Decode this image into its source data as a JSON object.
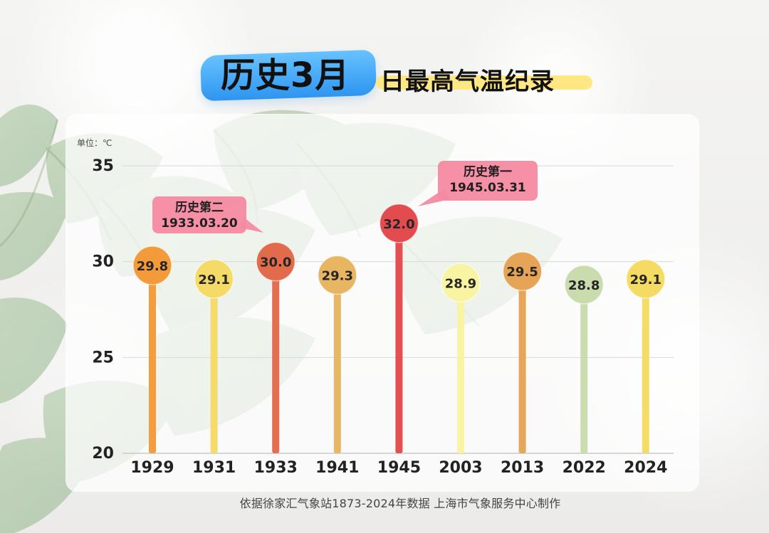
{
  "page": {
    "title_main": "历史3月",
    "title_sub": "日最高气温纪录",
    "unit_label": "单位：℃",
    "footer_note": "依据徐家汇气象站1873-2024年数据    上海市气象服务中心制作"
  },
  "colors": {
    "bg": "#eeeeec",
    "panel": "#ffffff",
    "grid": "#d9d9d9",
    "axis": "#c9c9c9",
    "text": "#222222",
    "title_blue": "#2e95f0",
    "title_yellow": "#ffe67d",
    "callout_pink": "#f48aa2"
  },
  "chart_data": {
    "type": "bar",
    "title": "历史3月日最高气温纪录",
    "xlabel": "",
    "ylabel": "单位：℃",
    "ylim": [
      20,
      35
    ],
    "yticks": [
      20,
      25,
      30,
      35
    ],
    "categories": [
      "1929",
      "1931",
      "1933",
      "1941",
      "1945",
      "2003",
      "2013",
      "2022",
      "2024"
    ],
    "values": [
      29.8,
      29.1,
      30.0,
      29.3,
      32.0,
      28.9,
      29.5,
      28.8,
      29.1
    ],
    "value_labels": [
      "29.8",
      "29.1",
      "30.0",
      "29.3",
      "32.0",
      "28.9",
      "29.5",
      "28.8",
      "29.1"
    ],
    "series_colors": [
      "#f39b3b",
      "#f4da67",
      "#e26b4c",
      "#e8b663",
      "#e34c4f",
      "#f8f4a2",
      "#e6a457",
      "#cadcad",
      "#f4dc64"
    ],
    "annotations": [
      {
        "category": "1933",
        "label_line1": "历史第二",
        "label_line2": "1933.03.20"
      },
      {
        "category": "1945",
        "label_line1": "历史第一",
        "label_line2": "1945.03.31"
      }
    ]
  }
}
